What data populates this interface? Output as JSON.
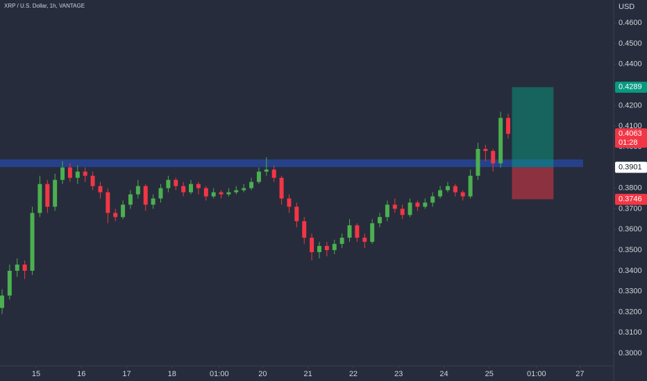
{
  "chart_data": {
    "type": "candlestick",
    "title": "XRP / U.S. Dollar, 1h, VANTAGE",
    "currency": "USD",
    "x": [
      -18,
      -14,
      -10,
      -6,
      -2,
      2,
      6,
      10,
      14,
      18,
      22,
      26,
      30,
      34,
      38,
      42,
      46,
      50,
      54,
      58,
      62,
      66,
      70,
      74,
      78,
      82,
      86,
      90,
      94,
      98,
      102,
      106,
      110,
      114,
      118,
      122,
      126,
      130,
      134,
      138,
      142,
      146,
      150,
      154,
      158,
      162,
      166,
      170,
      174,
      178,
      182,
      186,
      190,
      194,
      198,
      202,
      206,
      210,
      214,
      218,
      222,
      226,
      230,
      234,
      238,
      242,
      246,
      250
    ],
    "open": [
      0.322,
      0.328,
      0.34,
      0.343,
      0.34,
      0.368,
      0.382,
      0.371,
      0.384,
      0.39,
      0.385,
      0.388,
      0.386,
      0.381,
      0.378,
      0.368,
      0.366,
      0.372,
      0.377,
      0.381,
      0.372,
      0.375,
      0.38,
      0.384,
      0.381,
      0.378,
      0.382,
      0.38,
      0.376,
      0.378,
      0.377,
      0.378,
      0.379,
      0.38,
      0.383,
      0.388,
      0.389,
      0.385,
      0.375,
      0.371,
      0.364,
      0.356,
      0.349,
      0.352,
      0.35,
      0.353,
      0.356,
      0.362,
      0.356,
      0.354,
      0.363,
      0.366,
      0.372,
      0.37,
      0.367,
      0.373,
      0.371,
      0.373,
      0.376,
      0.379,
      0.381,
      0.378,
      0.376,
      0.386,
      0.399,
      0.398,
      0.392,
      0.414
    ],
    "high": [
      0.331,
      0.343,
      0.346,
      0.345,
      0.371,
      0.386,
      0.384,
      0.387,
      0.393,
      0.392,
      0.391,
      0.39,
      0.388,
      0.383,
      0.38,
      0.37,
      0.374,
      0.379,
      0.384,
      0.382,
      0.377,
      0.382,
      0.386,
      0.385,
      0.383,
      0.384,
      0.383,
      0.381,
      0.38,
      0.379,
      0.38,
      0.381,
      0.382,
      0.385,
      0.39,
      0.395,
      0.391,
      0.386,
      0.377,
      0.373,
      0.366,
      0.358,
      0.354,
      0.354,
      0.355,
      0.358,
      0.365,
      0.363,
      0.358,
      0.365,
      0.368,
      0.374,
      0.375,
      0.372,
      0.375,
      0.374,
      0.375,
      0.378,
      0.381,
      0.383,
      0.382,
      0.379,
      0.389,
      0.402,
      0.401,
      0.399,
      0.417,
      0.416
    ],
    "low": [
      0.319,
      0.326,
      0.337,
      0.336,
      0.338,
      0.366,
      0.368,
      0.369,
      0.382,
      0.383,
      0.382,
      0.383,
      0.379,
      0.375,
      0.363,
      0.364,
      0.365,
      0.37,
      0.375,
      0.369,
      0.37,
      0.373,
      0.378,
      0.379,
      0.376,
      0.377,
      0.377,
      0.374,
      0.375,
      0.375,
      0.376,
      0.377,
      0.378,
      0.379,
      0.382,
      0.386,
      0.383,
      0.372,
      0.368,
      0.361,
      0.353,
      0.345,
      0.346,
      0.347,
      0.348,
      0.351,
      0.354,
      0.354,
      0.351,
      0.353,
      0.361,
      0.364,
      0.368,
      0.365,
      0.366,
      0.369,
      0.37,
      0.371,
      0.375,
      0.378,
      0.376,
      0.374,
      0.375,
      0.384,
      0.393,
      0.388,
      0.39,
      0.404
    ],
    "close": [
      0.328,
      0.34,
      0.343,
      0.34,
      0.368,
      0.382,
      0.371,
      0.384,
      0.39,
      0.385,
      0.388,
      0.386,
      0.381,
      0.378,
      0.368,
      0.366,
      0.372,
      0.377,
      0.381,
      0.372,
      0.375,
      0.38,
      0.384,
      0.381,
      0.378,
      0.382,
      0.38,
      0.376,
      0.378,
      0.377,
      0.378,
      0.379,
      0.38,
      0.383,
      0.388,
      0.389,
      0.385,
      0.375,
      0.371,
      0.364,
      0.356,
      0.349,
      0.352,
      0.35,
      0.353,
      0.356,
      0.362,
      0.356,
      0.354,
      0.363,
      0.366,
      0.372,
      0.37,
      0.367,
      0.373,
      0.371,
      0.373,
      0.376,
      0.379,
      0.381,
      0.378,
      0.376,
      0.386,
      0.399,
      0.398,
      0.392,
      0.414,
      0.4063
    ],
    "up_color": "#4caf50",
    "down_color": "#f23645",
    "xlim": [
      -19.1,
      289.7
    ],
    "xticks": [
      {
        "value": 0,
        "label": "15"
      },
      {
        "value": 24,
        "label": "16"
      },
      {
        "value": 48,
        "label": "17"
      },
      {
        "value": 72,
        "label": "18"
      },
      {
        "value": 97,
        "label": "01:00"
      },
      {
        "value": 120,
        "label": "20"
      },
      {
        "value": 144,
        "label": "21"
      },
      {
        "value": 168,
        "label": "22"
      },
      {
        "value": 192,
        "label": "23"
      },
      {
        "value": 216,
        "label": "24"
      },
      {
        "value": 240,
        "label": "25"
      },
      {
        "value": 265,
        "label": "01:00"
      },
      {
        "value": 288,
        "label": "27"
      }
    ],
    "ylim": [
      0.294,
      0.4711
    ],
    "yticks": [
      {
        "value": 0.3,
        "label": "0.3000"
      },
      {
        "value": 0.31,
        "label": "0.3100"
      },
      {
        "value": 0.32,
        "label": "0.3200"
      },
      {
        "value": 0.33,
        "label": "0.3300"
      },
      {
        "value": 0.34,
        "label": "0.3400"
      },
      {
        "value": 0.35,
        "label": "0.3500"
      },
      {
        "value": 0.36,
        "label": "0.3600"
      },
      {
        "value": 0.37,
        "label": "0.3700"
      },
      {
        "value": 0.38,
        "label": "0.3800"
      },
      {
        "value": 0.39,
        "label": "0.3900"
      },
      {
        "value": 0.4,
        "label": "0.4000"
      },
      {
        "value": 0.41,
        "label": "0.4100"
      },
      {
        "value": 0.42,
        "label": "0.4200"
      },
      {
        "value": 0.43,
        "label": "0.4300"
      },
      {
        "value": 0.44,
        "label": "0.4400"
      },
      {
        "value": 0.45,
        "label": "0.4500"
      },
      {
        "value": 0.46,
        "label": "0.4600"
      }
    ],
    "zone": {
      "low": 0.3902,
      "high": 0.3939,
      "color": "#2962ff"
    },
    "level": 0.3901,
    "last_price": 0.4063,
    "countdown": "01:28",
    "position": {
      "x_start": 252,
      "x_end": 274,
      "entry": 0.3901,
      "target": 0.4289,
      "stop": 0.3746,
      "target_color": "#089981",
      "stop_color": "#f23645"
    }
  }
}
